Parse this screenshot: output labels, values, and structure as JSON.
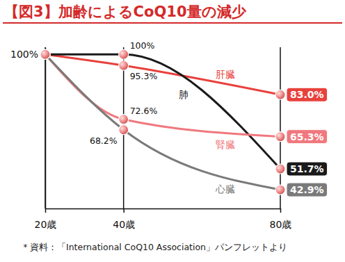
{
  "chart_data": {
    "type": "line",
    "title": "【図3】加齢によるCoQ10量の減少",
    "x": [
      20,
      40,
      80
    ],
    "xlim": [
      20,
      80
    ],
    "xticks": [
      {
        "value": 20,
        "label": "20歳"
      },
      {
        "value": 40,
        "label": "40歳"
      },
      {
        "value": 80,
        "label": "80歳"
      }
    ],
    "ylim": [
      35,
      103
    ],
    "yticks": [
      {
        "value": 100,
        "label": "100%"
      }
    ],
    "grid": "x",
    "marker": "circle",
    "data_labels": true,
    "series": [
      {
        "name": "肝臓",
        "color": "#e8413c",
        "values": [
          100,
          95.3,
          83.0
        ],
        "value_labels": [
          null,
          "95.3%",
          "83.0%"
        ]
      },
      {
        "name": "肺",
        "color": "#1a1a1a",
        "values": [
          100,
          100,
          51.7
        ],
        "value_labels": [
          null,
          "100%",
          "51.7%"
        ]
      },
      {
        "name": "腎臓",
        "color": "#f0787e",
        "values": [
          100,
          72.6,
          65.3
        ],
        "value_labels": [
          null,
          "72.6%",
          "65.3%"
        ]
      },
      {
        "name": "心臓",
        "color": "#7a7a7a",
        "values": [
          100,
          68.2,
          42.9
        ],
        "value_labels": [
          null,
          "68.2%",
          "42.9%"
        ]
      }
    ],
    "note": "＊資料：「International CoQ10 Association」パンフレットより"
  }
}
